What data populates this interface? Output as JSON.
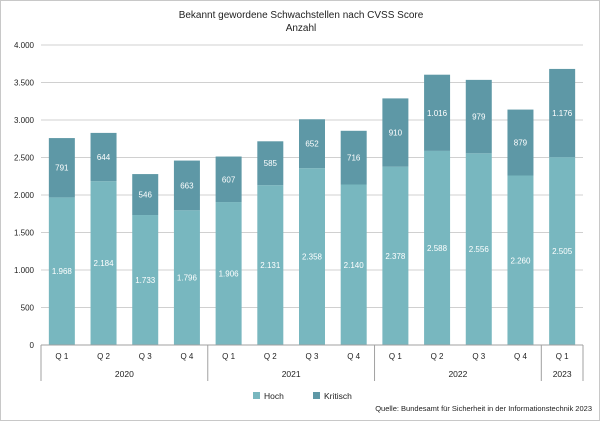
{
  "chart_data": {
    "type": "bar",
    "stacked": true,
    "title": "Bekannt gewordene Schwachstellen nach CVSS Score",
    "subtitle": "Anzahl",
    "categories": [
      "Q 1",
      "Q 2",
      "Q 3",
      "Q 4",
      "Q 1",
      "Q 2",
      "Q 3",
      "Q 4",
      "Q 1",
      "Q 2",
      "Q 3",
      "Q 4",
      "Q 1"
    ],
    "groups": [
      {
        "label": "2020",
        "count": 4
      },
      {
        "label": "2021",
        "count": 4
      },
      {
        "label": "2022",
        "count": 4
      },
      {
        "label": "2023",
        "count": 1
      }
    ],
    "series": [
      {
        "name": "Hoch",
        "color": "#78b7bf",
        "values": [
          1968,
          2184,
          1733,
          1796,
          1906,
          2131,
          2358,
          2140,
          2378,
          2588,
          2556,
          2260,
          2505
        ],
        "labels": [
          "1.968",
          "2.184",
          "1.733",
          "1.796",
          "1.906",
          "2.131",
          "2.358",
          "2.140",
          "2.378",
          "2.588",
          "2.556",
          "2.260",
          "2.505"
        ]
      },
      {
        "name": "Kritisch",
        "color": "#5e98a6",
        "values": [
          791,
          644,
          546,
          663,
          607,
          585,
          652,
          716,
          910,
          1016,
          979,
          879,
          1176
        ],
        "labels": [
          "791",
          "644",
          "546",
          "663",
          "607",
          "585",
          "652",
          "716",
          "910",
          "1.016",
          "979",
          "879",
          "1.176"
        ]
      }
    ],
    "ylim": [
      0,
      4000
    ],
    "yticks": [
      0,
      500,
      1000,
      1500,
      2000,
      2500,
      3000,
      3500,
      4000
    ],
    "ytick_labels": [
      "0",
      "500",
      "1.000",
      "1.500",
      "2.000",
      "2.500",
      "3.000",
      "3.500",
      "4.000"
    ],
    "grid": true,
    "legend_position": "bottom-center",
    "source": "Quelle: Bundesamt für Sicherheit in der Informationstechnik 2023"
  }
}
